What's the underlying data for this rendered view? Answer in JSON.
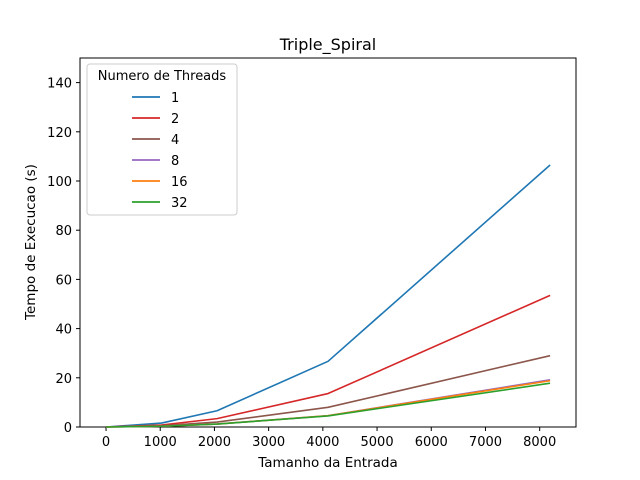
{
  "chart_data": {
    "type": "line",
    "title": "Triple_Spiral",
    "xlabel": "Tamanho da Entrada",
    "ylabel": "Tempo de Execucao (s)",
    "xlim": [
      -480,
      8670
    ],
    "ylim": [
      0,
      150
    ],
    "xticks": [
      0,
      1000,
      2000,
      3000,
      4000,
      5000,
      6000,
      7000,
      8000
    ],
    "yticks": [
      0,
      20,
      40,
      60,
      80,
      100,
      120,
      140
    ],
    "grid": false,
    "legend": {
      "title": "Numero de Threads",
      "placement": "top-left"
    },
    "x": [
      0,
      1024,
      2048,
      4096,
      8192
    ],
    "series": [
      {
        "name": "1",
        "color": "#1f77b4",
        "values": [
          0.0,
          1.6,
          6.6,
          26.7,
          106.5
        ]
      },
      {
        "name": "2",
        "color": "#d62728",
        "values": [
          0.0,
          0.8,
          3.4,
          13.6,
          53.5
        ]
      },
      {
        "name": "4",
        "color": "#8c564b",
        "values": [
          0.0,
          0.5,
          2.0,
          8.0,
          29.0
        ]
      },
      {
        "name": "8",
        "color": "#9467bd",
        "values": [
          0.0,
          0.3,
          1.2,
          4.6,
          19.2
        ]
      },
      {
        "name": "16",
        "color": "#ff7f0e",
        "values": [
          0.0,
          0.3,
          1.2,
          4.6,
          18.8
        ]
      },
      {
        "name": "32",
        "color": "#2ca02c",
        "values": [
          0.0,
          0.3,
          1.2,
          4.5,
          17.8
        ]
      }
    ]
  }
}
